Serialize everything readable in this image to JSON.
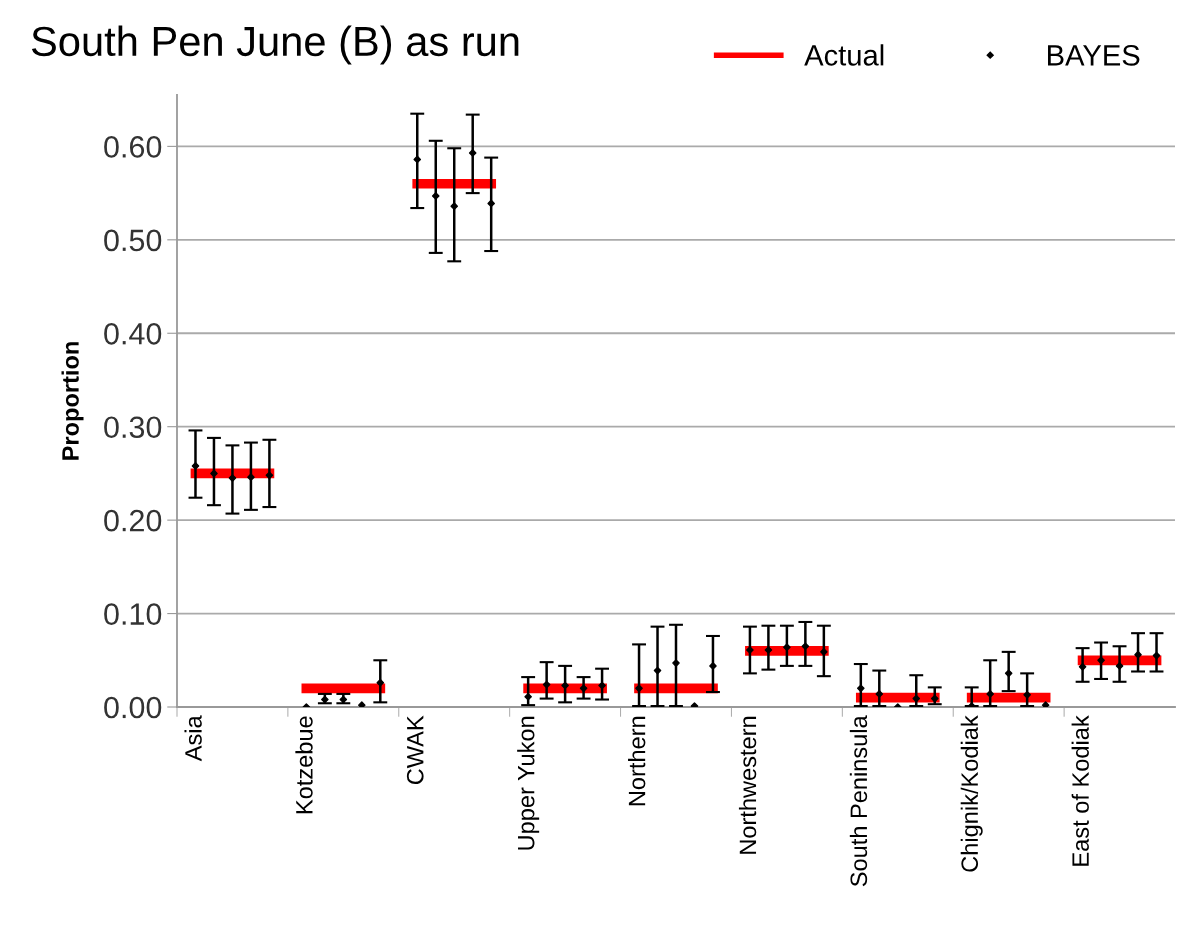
{
  "chart_data": {
    "type": "scatter",
    "title": "South Pen June (B) as run",
    "ylabel": "Proportion",
    "categories": [
      null,
      "Asia",
      null,
      null,
      null,
      null,
      null,
      "Kotzebue",
      null,
      null,
      null,
      null,
      null,
      "CWAK",
      null,
      null,
      null,
      null,
      null,
      "Upper Yukon",
      null,
      null,
      null,
      null,
      null,
      "Northern",
      null,
      null,
      null,
      null,
      null,
      "Northwestern",
      null,
      null,
      null,
      null,
      null,
      "South Peninsula",
      null,
      null,
      null,
      null,
      null,
      "Chignik/Kodiak",
      null,
      null,
      null,
      null,
      null,
      "East of Kodiak",
      null,
      null,
      null,
      null
    ],
    "ylim": [
      0,
      0.655
    ],
    "yticks": [
      {
        "value": 0,
        "label": "0.00"
      },
      {
        "value": 0.1,
        "label": "0.10"
      },
      {
        "value": 0.2,
        "label": "0.20"
      },
      {
        "value": 0.3,
        "label": "0.30"
      },
      {
        "value": 0.4,
        "label": "0.40"
      },
      {
        "value": 0.5,
        "label": "0.50"
      },
      {
        "value": 0.6,
        "label": "0.60"
      }
    ],
    "grid": "y",
    "legend": "top right",
    "series": [
      {
        "name": "Actual",
        "type": "line",
        "color": "#ff0000",
        "marker": "none",
        "values": [
          null,
          0.25,
          0.25,
          0.25,
          0.25,
          0.25,
          null,
          0.02,
          0.02,
          0.02,
          0.02,
          0.02,
          null,
          0.56,
          0.56,
          0.56,
          0.56,
          0.56,
          null,
          0.02,
          0.02,
          0.02,
          0.02,
          0.02,
          null,
          0.02,
          0.02,
          0.02,
          0.02,
          0.02,
          null,
          0.06,
          0.06,
          0.06,
          0.06,
          0.06,
          null,
          0.01,
          0.01,
          0.01,
          0.01,
          0.01,
          null,
          0.01,
          0.01,
          0.01,
          0.01,
          0.01,
          null,
          0.05,
          0.05,
          0.05,
          0.05,
          0.05
        ]
      },
      {
        "name": "BAYES",
        "color": "#000000",
        "marker": "diamond",
        "values": [
          null,
          0.258,
          0.25,
          0.245,
          0.246,
          0.248,
          null,
          0.0,
          0.008,
          0.008,
          0.002,
          0.026,
          null,
          0.586,
          0.547,
          0.536,
          0.593,
          0.539,
          null,
          0.011,
          0.024,
          0.023,
          0.02,
          0.023,
          null,
          0.02,
          0.039,
          0.047,
          0.001,
          0.044,
          null,
          0.061,
          0.061,
          0.064,
          0.065,
          0.059,
          null,
          0.02,
          0.014,
          0.0,
          0.009,
          0.009,
          null,
          0.001,
          0.014,
          0.036,
          0.013,
          0.002,
          null,
          0.043,
          0.05,
          0.044,
          0.056,
          0.055
        ],
        "errors": [
          null,
          [
            0.224,
            0.296
          ],
          [
            0.216,
            0.288
          ],
          [
            0.207,
            0.28
          ],
          [
            0.211,
            0.283
          ],
          [
            0.214,
            0.286
          ],
          null,
          null,
          [
            0.004,
            0.014
          ],
          [
            0.004,
            0.014
          ],
          null,
          [
            0.005,
            0.05
          ],
          null,
          [
            0.534,
            0.635
          ],
          [
            0.486,
            0.606
          ],
          [
            0.477,
            0.598
          ],
          [
            0.55,
            0.634
          ],
          [
            0.488,
            0.588
          ],
          null,
          [
            0.002,
            0.032
          ],
          [
            0.009,
            0.048
          ],
          [
            0.005,
            0.044
          ],
          [
            0.009,
            0.032
          ],
          [
            0.008,
            0.041
          ],
          null,
          [
            0.001,
            0.067
          ],
          [
            0.001,
            0.086
          ],
          [
            0.001,
            0.088
          ],
          null,
          [
            0.016,
            0.076
          ],
          null,
          [
            0.036,
            0.086
          ],
          [
            0.04,
            0.087
          ],
          [
            0.044,
            0.087
          ],
          [
            0.044,
            0.091
          ],
          [
            0.033,
            0.087
          ],
          null,
          [
            0.001,
            0.046
          ],
          [
            0.001,
            0.039
          ],
          null,
          [
            0.001,
            0.034
          ],
          [
            0.003,
            0.021
          ],
          null,
          [
            0.001,
            0.021
          ],
          [
            0.001,
            0.05
          ],
          [
            0.017,
            0.059
          ],
          [
            0.001,
            0.036
          ],
          null,
          null,
          [
            0.027,
            0.063
          ],
          [
            0.03,
            0.069
          ],
          [
            0.027,
            0.065
          ],
          [
            0.038,
            0.079
          ],
          [
            0.038,
            0.079
          ]
        ]
      }
    ]
  }
}
